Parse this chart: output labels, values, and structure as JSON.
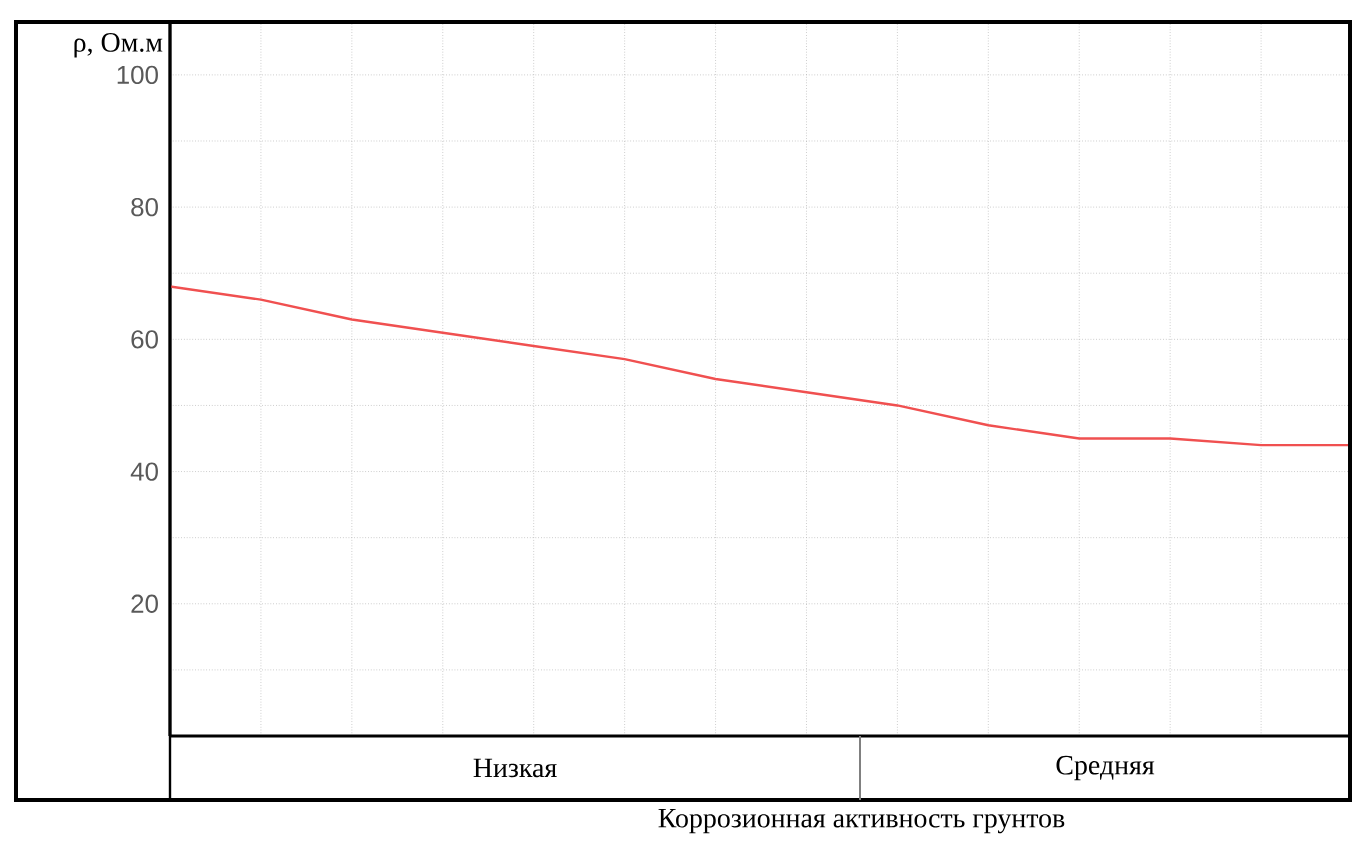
{
  "chart_data": {
    "type": "line",
    "ylabel": "ρ, Ом.м",
    "xlabel": "Коррозионная активность  грунтов",
    "categories": [
      null,
      null,
      null,
      null,
      null,
      null,
      null,
      null,
      null,
      null,
      null,
      null,
      null,
      null
    ],
    "values": [
      68,
      66,
      63,
      61,
      59,
      57,
      54,
      52,
      50,
      47,
      45,
      45,
      44,
      44
    ],
    "color": "#f05050",
    "ylim": [
      0,
      108
    ],
    "yticks": [
      {
        "value": 10,
        "label": null
      },
      20,
      {
        "value": 30,
        "label": null
      },
      40,
      {
        "value": 50,
        "label": null
      },
      60,
      {
        "value": 70,
        "label": null
      },
      80,
      {
        "value": 90,
        "label": null
      },
      100
    ],
    "grid": true,
    "line_style": "solid",
    "marker": "none",
    "annotations": [
      "Низкая",
      "Средняя"
    ]
  }
}
